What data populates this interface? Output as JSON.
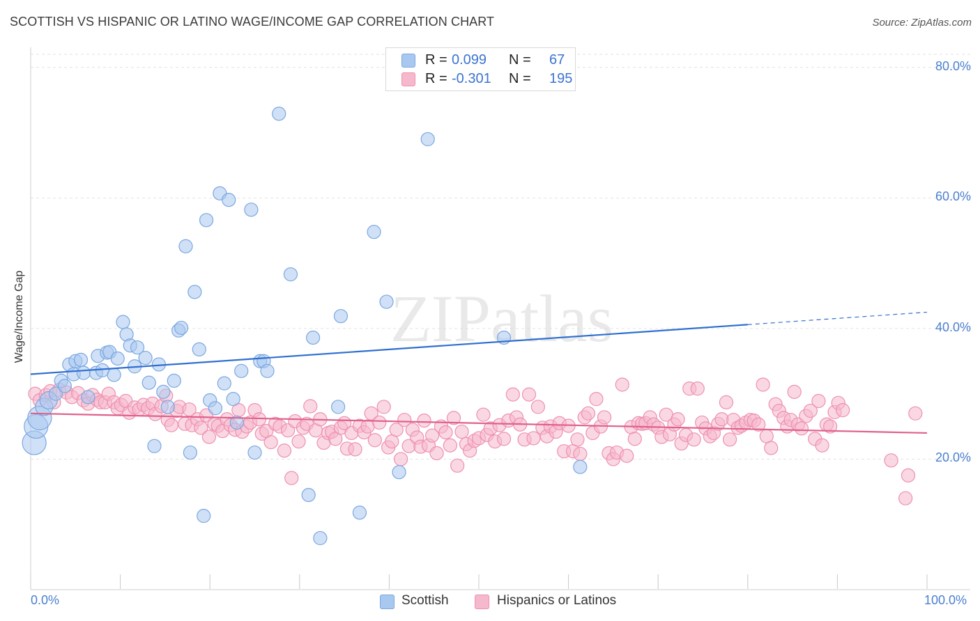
{
  "title": "SCOTTISH VS HISPANIC OR LATINO WAGE/INCOME GAP CORRELATION CHART",
  "source": "Source: ZipAtlas.com",
  "watermark": "ZIPatlas",
  "colors": {
    "blue_fill": "#a9c8f0",
    "blue_stroke": "#7aa7e0",
    "blue_line": "#2f6fd0",
    "pink_fill": "#f6b8cc",
    "pink_stroke": "#ee90ae",
    "pink_line": "#e0608c",
    "grid": "#e2e2e2",
    "tick_label": "#4a7fd0"
  },
  "legend_top": {
    "rows": [
      {
        "r_label": "R =",
        "r_value": "0.099",
        "n_label": "N =",
        "n_value": "67",
        "color": "#a9c8f0"
      },
      {
        "r_label": "R =",
        "r_value": "-0.301",
        "n_label": "N =",
        "n_value": "195",
        "color": "#f6b8cc"
      }
    ]
  },
  "legend_bottom": {
    "items": [
      {
        "label": "Scottish",
        "color": "#a9c8f0"
      },
      {
        "label": "Hispanics or Latinos",
        "color": "#f6b8cc"
      }
    ]
  },
  "chart_data": {
    "type": "scatter",
    "title": "SCOTTISH VS HISPANIC OR LATINO WAGE/INCOME GAP CORRELATION CHART",
    "xlabel": "",
    "ylabel": "Wage/Income Gap",
    "xlim": [
      0,
      100
    ],
    "ylim": [
      0,
      82
    ],
    "x_tick_labels": [
      "0.0%",
      "100.0%"
    ],
    "y_ticks": [
      20,
      40,
      60,
      80
    ],
    "y_tick_labels": [
      "20.0%",
      "40.0%",
      "60.0%",
      "80.0%"
    ],
    "grid": true,
    "legend_position": "top-center",
    "series": [
      {
        "name": "Scottish",
        "R": 0.099,
        "N": 67,
        "trend": {
          "x": [
            0,
            80
          ],
          "y": [
            33.0,
            40.6
          ],
          "dashed_extension": {
            "x": [
              80,
              100
            ],
            "y": [
              40.6,
              42.5
            ]
          }
        },
        "points": [
          [
            0.4,
            22.5
          ],
          [
            0.6,
            25.0
          ],
          [
            1.0,
            26.3
          ],
          [
            1.5,
            28.0
          ],
          [
            2.0,
            29.0
          ],
          [
            2.8,
            30.0
          ],
          [
            3.4,
            32.0
          ],
          [
            3.8,
            31.2
          ],
          [
            4.3,
            34.5
          ],
          [
            4.8,
            33.0
          ],
          [
            5.0,
            35.0
          ],
          [
            5.6,
            35.2
          ],
          [
            5.9,
            33.2
          ],
          [
            6.4,
            29.5
          ],
          [
            7.3,
            33.2
          ],
          [
            7.5,
            35.8
          ],
          [
            8.0,
            33.6
          ],
          [
            8.5,
            36.3
          ],
          [
            8.8,
            36.4
          ],
          [
            9.3,
            32.9
          ],
          [
            9.7,
            35.4
          ],
          [
            10.3,
            41.0
          ],
          [
            10.7,
            39.1
          ],
          [
            11.1,
            37.4
          ],
          [
            11.6,
            34.2
          ],
          [
            11.9,
            37.1
          ],
          [
            12.8,
            35.5
          ],
          [
            13.2,
            31.7
          ],
          [
            13.8,
            22.0
          ],
          [
            14.3,
            34.5
          ],
          [
            14.8,
            30.3
          ],
          [
            15.3,
            28.0
          ],
          [
            16.0,
            32.0
          ],
          [
            16.5,
            39.7
          ],
          [
            16.8,
            40.1
          ],
          [
            17.3,
            52.6
          ],
          [
            17.8,
            21.0
          ],
          [
            18.3,
            45.6
          ],
          [
            18.8,
            36.8
          ],
          [
            19.3,
            11.3
          ],
          [
            19.6,
            56.6
          ],
          [
            20.0,
            29.0
          ],
          [
            20.6,
            27.8
          ],
          [
            21.1,
            60.7
          ],
          [
            21.6,
            31.6
          ],
          [
            22.1,
            59.7
          ],
          [
            22.6,
            29.2
          ],
          [
            23.0,
            25.6
          ],
          [
            23.5,
            33.5
          ],
          [
            24.6,
            58.2
          ],
          [
            25.0,
            21.0
          ],
          [
            25.6,
            35.0
          ],
          [
            26.0,
            35.0
          ],
          [
            26.4,
            33.5
          ],
          [
            27.7,
            72.9
          ],
          [
            29.0,
            48.3
          ],
          [
            31.0,
            14.5
          ],
          [
            31.5,
            38.6
          ],
          [
            32.3,
            7.9
          ],
          [
            34.3,
            28.0
          ],
          [
            34.6,
            41.9
          ],
          [
            36.7,
            11.8
          ],
          [
            38.3,
            54.8
          ],
          [
            39.7,
            44.1
          ],
          [
            41.1,
            18.0
          ],
          [
            44.3,
            69.0
          ],
          [
            52.8,
            38.6
          ],
          [
            61.3,
            18.8
          ]
        ]
      },
      {
        "name": "Hispanics or Latinos",
        "R": -0.301,
        "N": 195,
        "trend": {
          "x": [
            0,
            100
          ],
          "y": [
            27.0,
            24.0
          ]
        },
        "points": [
          [
            0.5,
            30.0
          ],
          [
            1.0,
            29.0
          ],
          [
            1.7,
            29.8
          ],
          [
            2.2,
            30.4
          ],
          [
            2.6,
            28.7
          ],
          [
            3.2,
            30.6
          ],
          [
            4.0,
            30.2
          ],
          [
            4.6,
            29.5
          ],
          [
            5.3,
            30.1
          ],
          [
            5.9,
            29.0
          ],
          [
            6.4,
            28.5
          ],
          [
            6.9,
            29.8
          ],
          [
            7.4,
            29.1
          ],
          [
            7.8,
            28.7
          ],
          [
            8.3,
            28.7
          ],
          [
            8.7,
            30.0
          ],
          [
            9.3,
            28.7
          ],
          [
            9.7,
            27.8
          ],
          [
            10.1,
            28.3
          ],
          [
            10.6,
            28.9
          ],
          [
            11.0,
            27.1
          ],
          [
            11.6,
            27.9
          ],
          [
            12.1,
            27.6
          ],
          [
            12.6,
            28.3
          ],
          [
            13.1,
            27.8
          ],
          [
            13.6,
            28.5
          ],
          [
            13.9,
            26.9
          ],
          [
            14.6,
            28.1
          ],
          [
            15.1,
            29.7
          ],
          [
            15.3,
            26.0
          ],
          [
            15.7,
            25.2
          ],
          [
            16.3,
            27.4
          ],
          [
            16.6,
            28.0
          ],
          [
            17.2,
            25.4
          ],
          [
            17.7,
            27.6
          ],
          [
            18.0,
            25.2
          ],
          [
            18.6,
            26.1
          ],
          [
            19.0,
            24.8
          ],
          [
            19.6,
            26.7
          ],
          [
            19.9,
            23.4
          ],
          [
            20.5,
            25.4
          ],
          [
            20.9,
            25.1
          ],
          [
            21.4,
            24.3
          ],
          [
            21.9,
            26.1
          ],
          [
            22.3,
            25.2
          ],
          [
            22.8,
            24.5
          ],
          [
            23.2,
            27.5
          ],
          [
            23.6,
            24.2
          ],
          [
            24.1,
            25.0
          ],
          [
            24.5,
            25.6
          ],
          [
            25.0,
            27.5
          ],
          [
            25.5,
            26.1
          ],
          [
            25.8,
            23.9
          ],
          [
            26.3,
            24.3
          ],
          [
            26.8,
            22.6
          ],
          [
            27.3,
            25.4
          ],
          [
            27.8,
            25.0
          ],
          [
            28.3,
            21.3
          ],
          [
            28.7,
            24.4
          ],
          [
            29.1,
            17.1
          ],
          [
            29.5,
            25.8
          ],
          [
            29.9,
            22.7
          ],
          [
            30.4,
            24.8
          ],
          [
            30.8,
            25.4
          ],
          [
            31.2,
            28.1
          ],
          [
            31.8,
            24.4
          ],
          [
            32.3,
            26.1
          ],
          [
            32.7,
            22.5
          ],
          [
            33.2,
            24.0
          ],
          [
            33.6,
            24.2
          ],
          [
            34.0,
            23.1
          ],
          [
            34.6,
            24.8
          ],
          [
            35.0,
            25.5
          ],
          [
            35.3,
            21.6
          ],
          [
            35.8,
            24.0
          ],
          [
            36.2,
            21.5
          ],
          [
            36.7,
            25.1
          ],
          [
            37.2,
            24.1
          ],
          [
            37.6,
            25.0
          ],
          [
            38.0,
            27.0
          ],
          [
            38.4,
            22.9
          ],
          [
            38.9,
            25.6
          ],
          [
            39.4,
            28.0
          ],
          [
            39.9,
            21.8
          ],
          [
            40.3,
            22.7
          ],
          [
            40.8,
            24.5
          ],
          [
            41.3,
            20.0
          ],
          [
            41.7,
            26.0
          ],
          [
            42.2,
            22.0
          ],
          [
            42.6,
            24.5
          ],
          [
            43.1,
            23.3
          ],
          [
            43.5,
            21.9
          ],
          [
            43.9,
            25.9
          ],
          [
            44.4,
            22.1
          ],
          [
            44.8,
            23.6
          ],
          [
            45.3,
            20.9
          ],
          [
            45.8,
            25.0
          ],
          [
            46.3,
            24.1
          ],
          [
            46.8,
            22.1
          ],
          [
            47.2,
            26.3
          ],
          [
            47.6,
            19.0
          ],
          [
            48.1,
            24.2
          ],
          [
            48.6,
            22.3
          ],
          [
            49.0,
            21.3
          ],
          [
            49.5,
            22.8
          ],
          [
            50.0,
            23.2
          ],
          [
            50.5,
            26.8
          ],
          [
            50.9,
            23.7
          ],
          [
            51.3,
            24.7
          ],
          [
            51.8,
            22.7
          ],
          [
            52.3,
            25.2
          ],
          [
            52.8,
            23.1
          ],
          [
            53.3,
            25.9
          ],
          [
            53.8,
            29.9
          ],
          [
            54.2,
            26.4
          ],
          [
            54.6,
            25.3
          ],
          [
            55.1,
            23.0
          ],
          [
            55.6,
            29.9
          ],
          [
            56.1,
            23.2
          ],
          [
            56.6,
            28.0
          ],
          [
            57.1,
            24.8
          ],
          [
            57.6,
            23.5
          ],
          [
            58.0,
            25.0
          ],
          [
            58.6,
            24.2
          ],
          [
            59.0,
            25.5
          ],
          [
            59.5,
            21.2
          ],
          [
            60.0,
            25.1
          ],
          [
            60.5,
            21.2
          ],
          [
            61.0,
            23.0
          ],
          [
            61.3,
            20.8
          ],
          [
            61.8,
            26.4
          ],
          [
            62.2,
            27.0
          ],
          [
            62.7,
            24.0
          ],
          [
            63.1,
            29.2
          ],
          [
            63.6,
            25.0
          ],
          [
            64.0,
            26.4
          ],
          [
            64.5,
            20.9
          ],
          [
            65.0,
            20.0
          ],
          [
            65.4,
            21.0
          ],
          [
            66.0,
            31.4
          ],
          [
            66.5,
            20.5
          ],
          [
            67.0,
            24.9
          ],
          [
            67.4,
            23.1
          ],
          [
            67.8,
            25.5
          ],
          [
            68.2,
            25.4
          ],
          [
            68.6,
            25.5
          ],
          [
            69.1,
            26.4
          ],
          [
            69.5,
            25.3
          ],
          [
            70.0,
            24.8
          ],
          [
            70.4,
            23.4
          ],
          [
            70.9,
            26.8
          ],
          [
            71.3,
            23.8
          ],
          [
            71.8,
            25.3
          ],
          [
            72.2,
            26.1
          ],
          [
            72.6,
            22.4
          ],
          [
            73.1,
            23.7
          ],
          [
            73.5,
            30.8
          ],
          [
            74.0,
            23.0
          ],
          [
            74.4,
            30.8
          ],
          [
            74.9,
            25.6
          ],
          [
            75.3,
            24.7
          ],
          [
            75.8,
            23.5
          ],
          [
            76.2,
            24.0
          ],
          [
            76.7,
            25.4
          ],
          [
            77.1,
            26.1
          ],
          [
            77.6,
            28.7
          ],
          [
            78.0,
            23.0
          ],
          [
            78.4,
            26.0
          ],
          [
            78.9,
            24.8
          ],
          [
            79.3,
            25.1
          ],
          [
            79.8,
            25.6
          ],
          [
            80.3,
            26.0
          ],
          [
            80.7,
            25.9
          ],
          [
            81.2,
            25.3
          ],
          [
            81.7,
            31.4
          ],
          [
            82.1,
            23.5
          ],
          [
            82.6,
            21.7
          ],
          [
            83.1,
            28.4
          ],
          [
            83.5,
            27.4
          ],
          [
            84.0,
            26.3
          ],
          [
            84.4,
            25.0
          ],
          [
            84.8,
            26.0
          ],
          [
            85.2,
            30.3
          ],
          [
            85.6,
            25.3
          ],
          [
            86.0,
            24.7
          ],
          [
            86.5,
            26.6
          ],
          [
            87.0,
            27.4
          ],
          [
            87.5,
            23.1
          ],
          [
            87.9,
            28.9
          ],
          [
            88.3,
            22.1
          ],
          [
            88.8,
            25.3
          ],
          [
            89.2,
            25.0
          ],
          [
            89.7,
            27.2
          ],
          [
            90.1,
            28.6
          ],
          [
            90.6,
            27.5
          ],
          [
            96.0,
            19.8
          ],
          [
            97.6,
            14.0
          ],
          [
            97.9,
            17.5
          ],
          [
            98.7,
            27.0
          ]
        ]
      }
    ]
  }
}
